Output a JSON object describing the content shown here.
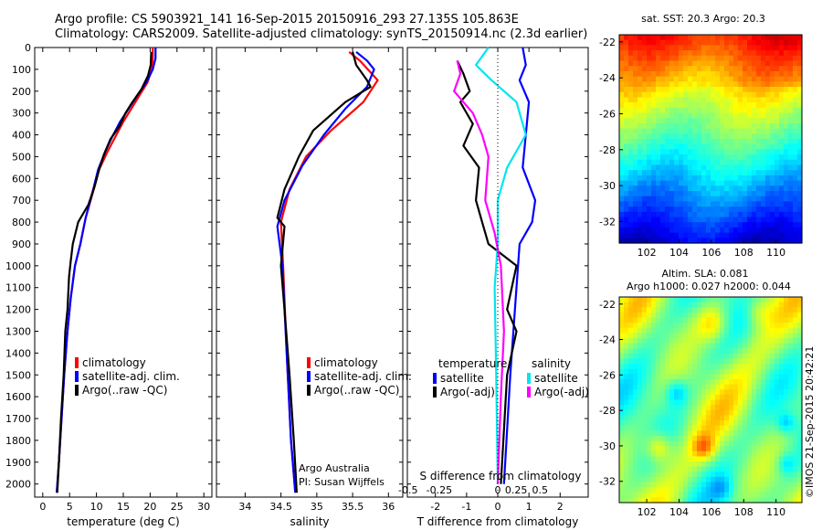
{
  "header": {
    "line1": "Argo profile: CS 5903921_141 16-Sep-2015 20150916_293 27.135S 105.863E",
    "line2": "Climatology: CARS2009. Satellite-adjusted climatology: synTS_20150914.nc (2.3d earlier)"
  },
  "credit": "©IMOS 21-Sep-2015 20:42:21",
  "colors": {
    "climatology": "#ff0000",
    "satellite": "#0000ff",
    "argo": "#000000",
    "satellite_diff_s": "#00e5ee",
    "argo_diff_s": "#ff00ff"
  },
  "chart_data": [
    {
      "type": "line",
      "xlabel": "temperature (deg C)",
      "xlim": [
        -1.5,
        31.5
      ],
      "xticks": [
        "0",
        "5",
        "10",
        "15",
        "20",
        "25",
        "30"
      ],
      "ylim": [
        0,
        2060
      ],
      "yreversed": true,
      "yticks": [
        "0",
        "100",
        "200",
        "300",
        "400",
        "500",
        "600",
        "700",
        "800",
        "900",
        "1000",
        "1100",
        "1200",
        "1300",
        "1400",
        "1500",
        "1600",
        "1700",
        "1800",
        "1900",
        "2000"
      ],
      "legend": [
        "climatology",
        "satellite-adj. clim.",
        "Argo(..raw -QC)"
      ],
      "series": [
        {
          "name": "climatology",
          "color": "#ff0000",
          "points": [
            [
              20.5,
              0
            ],
            [
              20.5,
              50
            ],
            [
              20.3,
              100
            ],
            [
              19.5,
              160
            ],
            [
              18,
              220
            ],
            [
              16.5,
              280
            ],
            [
              15,
              340
            ],
            [
              13.5,
              410
            ],
            [
              12,
              480
            ],
            [
              10.5,
              560
            ],
            [
              9.5,
              650
            ],
            [
              8,
              780
            ],
            [
              7,
              900
            ],
            [
              6,
              1000
            ],
            [
              5.2,
              1150
            ],
            [
              4.6,
              1300
            ],
            [
              4,
              1500
            ],
            [
              3.5,
              1700
            ],
            [
              3,
              1900
            ],
            [
              2.6,
              2040
            ]
          ]
        },
        {
          "name": "satellite-adj. clim.",
          "color": "#0000ff",
          "points": [
            [
              21,
              0
            ],
            [
              21,
              50
            ],
            [
              20.5,
              100
            ],
            [
              19.3,
              160
            ],
            [
              17.6,
              220
            ],
            [
              16,
              280
            ],
            [
              14.4,
              340
            ],
            [
              12.9,
              410
            ],
            [
              11.6,
              480
            ],
            [
              10.3,
              560
            ],
            [
              9.4,
              650
            ],
            [
              8,
              780
            ],
            [
              7,
              900
            ],
            [
              6,
              1000
            ],
            [
              5.2,
              1150
            ],
            [
              4.6,
              1300
            ],
            [
              4,
              1500
            ],
            [
              3.5,
              1700
            ],
            [
              3,
              1900
            ],
            [
              2.6,
              2040
            ]
          ]
        },
        {
          "name": "Argo(..raw -QC)",
          "color": "#000000",
          "points": [
            [
              20.2,
              20
            ],
            [
              20.1,
              80
            ],
            [
              19.6,
              130
            ],
            [
              18.4,
              190
            ],
            [
              16.7,
              250
            ],
            [
              15.4,
              300
            ],
            [
              14.3,
              360
            ],
            [
              12.6,
              420
            ],
            [
              11.4,
              490
            ],
            [
              10.5,
              560
            ],
            [
              9.6,
              640
            ],
            [
              8.5,
              720
            ],
            [
              6.6,
              800
            ],
            [
              5.6,
              900
            ],
            [
              5.2,
              980
            ],
            [
              4.9,
              1050
            ],
            [
              4.6,
              1200
            ],
            [
              4.2,
              1300
            ],
            [
              3.9,
              1500
            ],
            [
              3.4,
              1700
            ],
            [
              3,
              1900
            ],
            [
              2.7,
              2040
            ]
          ]
        }
      ]
    },
    {
      "type": "line",
      "xlabel": "salinity",
      "xlim": [
        33.6,
        36.2
      ],
      "xticks": [
        "34",
        "34.5",
        "35",
        "35.5",
        "36"
      ],
      "ylim": [
        0,
        2060
      ],
      "yreversed": true,
      "legend": [
        "climatology",
        "satellite-adj. clim.",
        "Argo(..raw -QC)"
      ],
      "annotation": [
        "Argo Australia",
        "PI: Susan Wijffels"
      ],
      "series": [
        {
          "name": "climatology",
          "color": "#ff0000",
          "points": [
            [
              35.45,
              20
            ],
            [
              35.6,
              60
            ],
            [
              35.85,
              150
            ],
            [
              35.65,
              250
            ],
            [
              35.2,
              380
            ],
            [
              34.85,
              500
            ],
            [
              34.62,
              650
            ],
            [
              34.5,
              800
            ],
            [
              34.53,
              1000
            ],
            [
              34.58,
              1400
            ],
            [
              34.64,
              1800
            ],
            [
              34.7,
              2040
            ]
          ]
        },
        {
          "name": "satellite-adj. clim.",
          "color": "#0000ff",
          "points": [
            [
              35.55,
              20
            ],
            [
              35.7,
              60
            ],
            [
              35.8,
              100
            ],
            [
              35.7,
              180
            ],
            [
              35.4,
              280
            ],
            [
              35.1,
              400
            ],
            [
              34.8,
              540
            ],
            [
              34.55,
              700
            ],
            [
              34.45,
              820
            ],
            [
              34.52,
              1000
            ],
            [
              34.58,
              1400
            ],
            [
              34.64,
              1800
            ],
            [
              34.7,
              2040
            ]
          ]
        },
        {
          "name": "Argo(..raw -QC)",
          "color": "#000000",
          "points": [
            [
              35.5,
              20
            ],
            [
              35.55,
              80
            ],
            [
              35.7,
              150
            ],
            [
              35.75,
              180
            ],
            [
              35.4,
              250
            ],
            [
              34.95,
              380
            ],
            [
              34.75,
              500
            ],
            [
              34.55,
              650
            ],
            [
              34.45,
              780
            ],
            [
              34.55,
              820
            ],
            [
              34.5,
              1000
            ],
            [
              34.55,
              1200
            ],
            [
              34.62,
              1500
            ],
            [
              34.68,
              1800
            ],
            [
              34.72,
              2040
            ]
          ]
        }
      ]
    },
    {
      "type": "line",
      "xlabel": "T difference from climatology",
      "xlabel_top": "S difference from climatology",
      "xlim": [
        -2.9,
        2.9
      ],
      "xticks": [
        "-2",
        "-1",
        "0",
        "1",
        "2"
      ],
      "xticks_s": [
        "-0.5",
        "-0.25",
        "0",
        "0.25",
        "0.5"
      ],
      "ylim": [
        0,
        2060
      ],
      "yreversed": true,
      "legend": {
        "temperature_title": "temperature",
        "salinity_title": "salinity",
        "items": [
          "satellite",
          "Argo(-adj)",
          "satellite",
          "Argo(-adj)"
        ]
      },
      "series": [
        {
          "name": "temperature satellite",
          "color": "#0000ff",
          "points": [
            [
              0.8,
              0
            ],
            [
              0.9,
              80
            ],
            [
              0.7,
              150
            ],
            [
              1,
              250
            ],
            [
              0.9,
              400
            ],
            [
              0.8,
              550
            ],
            [
              1.2,
              700
            ],
            [
              1.1,
              800
            ],
            [
              0.7,
              900
            ],
            [
              0.6,
              1100
            ],
            [
              0.4,
              1500
            ],
            [
              0.2,
              2000
            ]
          ]
        },
        {
          "name": "temperature Argo(-adj)",
          "color": "#000000",
          "points": [
            [
              -1.3,
              60
            ],
            [
              -1.1,
              120
            ],
            [
              -0.9,
              200
            ],
            [
              -1.2,
              250
            ],
            [
              -0.8,
              350
            ],
            [
              -1.1,
              450
            ],
            [
              -0.6,
              550
            ],
            [
              -0.7,
              700
            ],
            [
              -0.5,
              800
            ],
            [
              -0.3,
              900
            ],
            [
              0.6,
              1000
            ],
            [
              0.3,
              1200
            ],
            [
              0.6,
              1300
            ],
            [
              0.3,
              1500
            ],
            [
              0.1,
              2000
            ]
          ]
        },
        {
          "name": "salinity satellite",
          "color": "#00e5ee",
          "points": [
            [
              -0.3,
              0
            ],
            [
              -0.7,
              80
            ],
            [
              -0.2,
              150
            ],
            [
              0.6,
              250
            ],
            [
              0.9,
              400
            ],
            [
              0.3,
              550
            ],
            [
              0,
              700
            ],
            [
              0,
              900
            ],
            [
              -0.1,
              1100
            ],
            [
              -0.05,
              1500
            ],
            [
              0,
              2000
            ]
          ]
        },
        {
          "name": "salinity Argo(-adj)",
          "color": "#ff00ff",
          "points": [
            [
              -1.3,
              60
            ],
            [
              -1.2,
              120
            ],
            [
              -1.4,
              200
            ],
            [
              -0.8,
              300
            ],
            [
              -0.5,
              400
            ],
            [
              -0.3,
              500
            ],
            [
              -0.4,
              700
            ],
            [
              -0.1,
              850
            ],
            [
              0.1,
              1000
            ],
            [
              0.2,
              1300
            ],
            [
              0.1,
              1600
            ],
            [
              0,
              2000
            ]
          ]
        }
      ]
    },
    {
      "type": "heatmap",
      "title": "sat. SST: 20.3  Argo: 20.3",
      "xticks": [
        "102",
        "104",
        "106",
        "108",
        "110"
      ],
      "yticks": [
        "-22",
        "-24",
        "-26",
        "-28",
        "-30",
        "-32"
      ],
      "xlim": [
        100.3,
        111.6
      ],
      "ylim": [
        -33.2,
        -21.6
      ]
    },
    {
      "type": "heatmap",
      "title_lines": [
        "Altim. SLA: 0.081",
        "Argo h1000: 0.027 h2000: 0.044"
      ],
      "xticks": [
        "102",
        "104",
        "106",
        "108",
        "110"
      ],
      "yticks": [
        "-22",
        "-24",
        "-26",
        "-28",
        "-30",
        "-32"
      ],
      "xlim": [
        100.3,
        111.6
      ],
      "ylim": [
        -33.2,
        -21.6
      ]
    }
  ]
}
